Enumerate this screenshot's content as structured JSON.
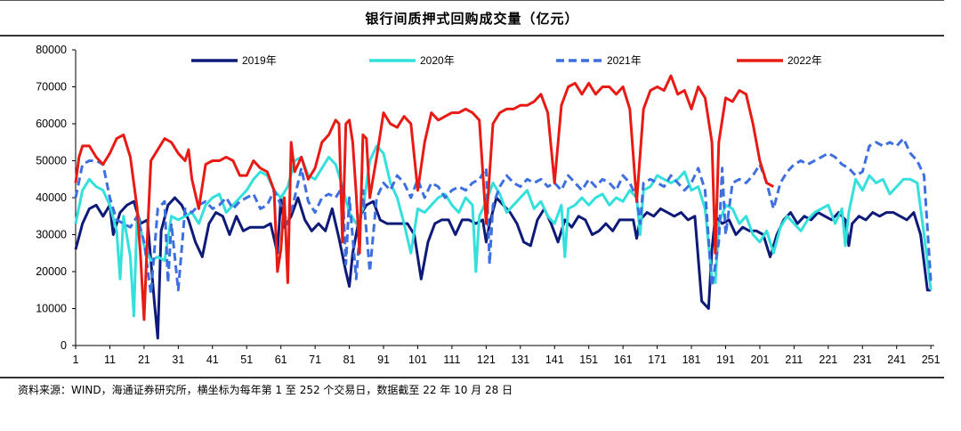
{
  "title": "银行间质押式回购成交量（亿元）",
  "source": "资料来源：WIND，海通证券研究所，横坐标为每年第 1 至 252 个交易日，数据截至 22 年 10 月 28 日",
  "chart_data": {
    "type": "line",
    "title": "银行间质押式回购成交量（亿元）",
    "xlabel": "",
    "ylabel": "",
    "xlim": [
      1,
      252
    ],
    "ylim": [
      0,
      80000
    ],
    "y_ticks": [
      0,
      10000,
      20000,
      30000,
      40000,
      50000,
      60000,
      70000,
      80000
    ],
    "x_ticks": [
      1,
      11,
      21,
      31,
      41,
      51,
      61,
      71,
      81,
      91,
      101,
      111,
      121,
      131,
      141,
      151,
      161,
      171,
      181,
      191,
      201,
      211,
      221,
      231,
      241,
      251
    ],
    "grid": false,
    "legend_position": "top",
    "series": [
      {
        "name": "2019年",
        "color": "#0d1a78",
        "style": "solid",
        "x": [
          1,
          3,
          5,
          7,
          9,
          11,
          12,
          14,
          16,
          18,
          20,
          22,
          24,
          25,
          26,
          28,
          30,
          32,
          34,
          36,
          38,
          40,
          42,
          44,
          46,
          48,
          50,
          52,
          54,
          56,
          58,
          60,
          61,
          62,
          64,
          66,
          68,
          70,
          72,
          74,
          76,
          78,
          80,
          81,
          82,
          84,
          86,
          88,
          90,
          92,
          94,
          96,
          98,
          100,
          102,
          104,
          106,
          108,
          110,
          112,
          114,
          116,
          118,
          120,
          121,
          122,
          124,
          126,
          128,
          130,
          132,
          134,
          136,
          138,
          140,
          142,
          144,
          146,
          148,
          150,
          152,
          154,
          156,
          158,
          160,
          162,
          164,
          165,
          166,
          168,
          170,
          172,
          174,
          176,
          178,
          180,
          182,
          184,
          186,
          187,
          188,
          190,
          192,
          194,
          196,
          198,
          200,
          202,
          204,
          206,
          208,
          210,
          212,
          214,
          216,
          218,
          220,
          222,
          224,
          226,
          227,
          228,
          230,
          232,
          234,
          236,
          238,
          240,
          242,
          244,
          246,
          248,
          250,
          251
        ],
        "values": [
          26000,
          33000,
          37000,
          38000,
          35000,
          38000,
          30000,
          36000,
          38000,
          39000,
          33000,
          34000,
          12000,
          2000,
          31000,
          38000,
          40000,
          38000,
          34000,
          28000,
          24000,
          33000,
          36000,
          35000,
          30000,
          35000,
          31000,
          32000,
          32000,
          32000,
          33000,
          25000,
          40000,
          32000,
          35000,
          40000,
          34000,
          31000,
          33000,
          31000,
          37000,
          29000,
          20000,
          16000,
          25000,
          35000,
          38000,
          39000,
          34000,
          33000,
          33000,
          33000,
          33000,
          30000,
          18000,
          28000,
          33000,
          34000,
          34000,
          30000,
          34000,
          34000,
          33000,
          34000,
          28000,
          33000,
          40000,
          38000,
          36000,
          33000,
          28000,
          27000,
          34000,
          37000,
          33000,
          28000,
          34000,
          32000,
          35000,
          34000,
          30000,
          31000,
          33000,
          31000,
          34000,
          34000,
          34000,
          29000,
          34000,
          36000,
          35000,
          37000,
          36000,
          35000,
          36000,
          34000,
          35000,
          12000,
          10000,
          26000,
          35000,
          33000,
          34000,
          30000,
          32000,
          31000,
          31000,
          30000,
          24000,
          30000,
          34000,
          36000,
          33000,
          35000,
          34000,
          36000,
          35000,
          34000,
          36000,
          34000,
          27000,
          33000,
          35000,
          34000,
          36000,
          35000,
          36000,
          36000,
          35000,
          34000,
          36000,
          30000,
          15000,
          15000
        ]
      },
      {
        "name": "2020年",
        "color": "#33e0dc",
        "style": "solid",
        "x": [
          1,
          3,
          5,
          7,
          9,
          11,
          13,
          14,
          15,
          17,
          18,
          19,
          21,
          23,
          25,
          27,
          29,
          31,
          33,
          35,
          37,
          39,
          41,
          43,
          45,
          47,
          49,
          51,
          53,
          55,
          57,
          59,
          61,
          63,
          65,
          67,
          69,
          71,
          73,
          75,
          77,
          79,
          81,
          83,
          85,
          87,
          89,
          91,
          93,
          95,
          97,
          99,
          101,
          103,
          105,
          107,
          109,
          111,
          113,
          115,
          117,
          118,
          119,
          121,
          123,
          125,
          127,
          129,
          131,
          133,
          135,
          137,
          139,
          141,
          143,
          144,
          145,
          147,
          149,
          151,
          153,
          155,
          157,
          159,
          161,
          163,
          165,
          166,
          167,
          169,
          171,
          173,
          175,
          177,
          179,
          181,
          183,
          185,
          187,
          188,
          189,
          191,
          193,
          195,
          197,
          199,
          201,
          203,
          205,
          207,
          209,
          211,
          213,
          215,
          217,
          219,
          221,
          223,
          225,
          226,
          227,
          229,
          231,
          233,
          235,
          237,
          239,
          241,
          243,
          245,
          247,
          249,
          251
        ],
        "values": [
          33000,
          42000,
          45000,
          43000,
          42000,
          38000,
          31000,
          18000,
          35000,
          24000,
          8000,
          36000,
          27000,
          23000,
          24000,
          23000,
          35000,
          34000,
          35000,
          36000,
          33000,
          38000,
          40000,
          41000,
          36000,
          38000,
          40000,
          42000,
          45000,
          47000,
          46000,
          42000,
          40000,
          43000,
          50000,
          51000,
          46000,
          45000,
          48000,
          51000,
          49000,
          43000,
          36000,
          33000,
          37000,
          50000,
          54000,
          52000,
          44000,
          40000,
          33000,
          25000,
          37000,
          36000,
          38000,
          40000,
          41000,
          38000,
          36000,
          40000,
          38000,
          20000,
          35000,
          39000,
          44000,
          41000,
          36000,
          38000,
          40000,
          42000,
          37000,
          39000,
          35000,
          33000,
          38000,
          24000,
          37000,
          38000,
          40000,
          38000,
          40000,
          41000,
          38000,
          40000,
          39000,
          42000,
          40000,
          30000,
          42000,
          43000,
          46000,
          45000,
          44000,
          45000,
          47000,
          42000,
          43000,
          37000,
          18000,
          17000,
          33000,
          38000,
          37000,
          33000,
          35000,
          30000,
          28000,
          31000,
          25000,
          32000,
          35000,
          33000,
          31000,
          34000,
          36000,
          37000,
          38000,
          33000,
          37000,
          27000,
          36000,
          45000,
          42000,
          46000,
          44000,
          45000,
          41000,
          43000,
          45000,
          45000,
          44000,
          30000,
          15000
        ]
      },
      {
        "name": "2021年",
        "color": "#3d6fe0",
        "style": "dashed",
        "x": [
          1,
          3,
          5,
          7,
          9,
          11,
          13,
          15,
          17,
          19,
          21,
          23,
          25,
          27,
          28,
          29,
          31,
          33,
          35,
          37,
          39,
          41,
          43,
          45,
          47,
          49,
          51,
          53,
          55,
          57,
          59,
          61,
          63,
          65,
          67,
          69,
          71,
          73,
          75,
          77,
          79,
          80,
          81,
          83,
          84,
          85,
          87,
          89,
          91,
          93,
          95,
          97,
          99,
          101,
          103,
          105,
          107,
          109,
          111,
          113,
          115,
          117,
          119,
          121,
          122,
          123,
          125,
          127,
          129,
          131,
          133,
          135,
          137,
          139,
          141,
          143,
          145,
          147,
          149,
          151,
          153,
          155,
          157,
          159,
          161,
          163,
          165,
          166,
          167,
          169,
          171,
          173,
          175,
          177,
          179,
          181,
          183,
          185,
          187,
          189,
          190,
          191,
          193,
          195,
          197,
          199,
          201,
          203,
          205,
          207,
          209,
          211,
          213,
          215,
          217,
          219,
          221,
          223,
          225,
          227,
          229,
          231,
          233,
          235,
          237,
          239,
          241,
          243,
          245,
          247,
          249,
          251
        ],
        "values": [
          40000,
          49000,
          50000,
          50000,
          49000,
          40000,
          34000,
          33000,
          32000,
          35000,
          28000,
          14000,
          37000,
          39000,
          17000,
          33000,
          15000,
          37000,
          36000,
          38000,
          39000,
          37000,
          38000,
          40000,
          37000,
          39000,
          40000,
          41000,
          37000,
          38000,
          42000,
          38000,
          33000,
          40000,
          48000,
          39000,
          36000,
          40000,
          41000,
          40000,
          43000,
          22000,
          40000,
          18000,
          30000,
          42000,
          20000,
          40000,
          44000,
          42000,
          46000,
          44000,
          40000,
          45000,
          40000,
          44000,
          43000,
          40000,
          42000,
          43000,
          42000,
          44000,
          45000,
          48000,
          22000,
          38000,
          43000,
          46000,
          44000,
          43000,
          45000,
          44000,
          45000,
          43000,
          44000,
          42000,
          46000,
          44000,
          42000,
          45000,
          43000,
          45000,
          44000,
          42000,
          46000,
          44000,
          40000,
          33000,
          44000,
          45000,
          44000,
          43000,
          46000,
          44000,
          42000,
          44000,
          48000,
          42000,
          16000,
          28000,
          48000,
          30000,
          44000,
          45000,
          44000,
          46000,
          49000,
          44000,
          37000,
          44000,
          47000,
          49000,
          50000,
          49000,
          50000,
          51000,
          52000,
          51000,
          49000,
          48000,
          46000,
          47000,
          54000,
          55000,
          54000,
          55000,
          54000,
          56000,
          52000,
          50000,
          46000,
          17000
        ]
      },
      {
        "name": "2022年",
        "color": "#e81a14",
        "style": "solid",
        "x": [
          1,
          2,
          3,
          5,
          7,
          9,
          11,
          13,
          15,
          17,
          19,
          20,
          21,
          22,
          23,
          25,
          27,
          29,
          31,
          33,
          34,
          35,
          37,
          39,
          41,
          43,
          45,
          47,
          49,
          51,
          53,
          55,
          57,
          59,
          60,
          61,
          62,
          63,
          64,
          65,
          67,
          69,
          71,
          73,
          75,
          77,
          78,
          79,
          80,
          81,
          82,
          83,
          84,
          85,
          86,
          87,
          89,
          91,
          93,
          95,
          97,
          99,
          101,
          103,
          105,
          107,
          109,
          111,
          113,
          115,
          117,
          119,
          121,
          123,
          125,
          127,
          129,
          131,
          133,
          135,
          137,
          139,
          141,
          143,
          145,
          147,
          149,
          151,
          153,
          155,
          157,
          159,
          161,
          163,
          165,
          167,
          169,
          171,
          173,
          175,
          177,
          179,
          181,
          183,
          185,
          187,
          188,
          189,
          191,
          193,
          195,
          197,
          199,
          201,
          203,
          205
        ],
        "values": [
          44000,
          51000,
          54000,
          54000,
          51000,
          49000,
          52000,
          56000,
          57000,
          51000,
          37000,
          24000,
          7000,
          30000,
          50000,
          53000,
          56000,
          55000,
          52000,
          50000,
          53000,
          45000,
          37000,
          49000,
          50000,
          50000,
          51000,
          50000,
          46000,
          46000,
          50000,
          48000,
          47000,
          42000,
          20000,
          26000,
          40000,
          17000,
          55000,
          47000,
          51000,
          45000,
          48000,
          55000,
          57000,
          61000,
          60000,
          28000,
          60000,
          61000,
          55000,
          41000,
          25000,
          57000,
          56000,
          40000,
          51000,
          63000,
          60000,
          59000,
          62000,
          60000,
          42000,
          55000,
          63000,
          61000,
          62000,
          63000,
          63000,
          64000,
          63000,
          61000,
          33000,
          60000,
          63000,
          64000,
          64000,
          65000,
          65000,
          66000,
          68000,
          63000,
          44000,
          65000,
          70000,
          71000,
          68000,
          71000,
          68000,
          70000,
          70000,
          68000,
          70000,
          64000,
          39000,
          64000,
          69000,
          70000,
          69000,
          73000,
          68000,
          69000,
          64000,
          70000,
          67000,
          55000,
          25000,
          55000,
          67000,
          66000,
          69000,
          68000,
          60000,
          50000,
          44000,
          43000
        ]
      }
    ]
  }
}
